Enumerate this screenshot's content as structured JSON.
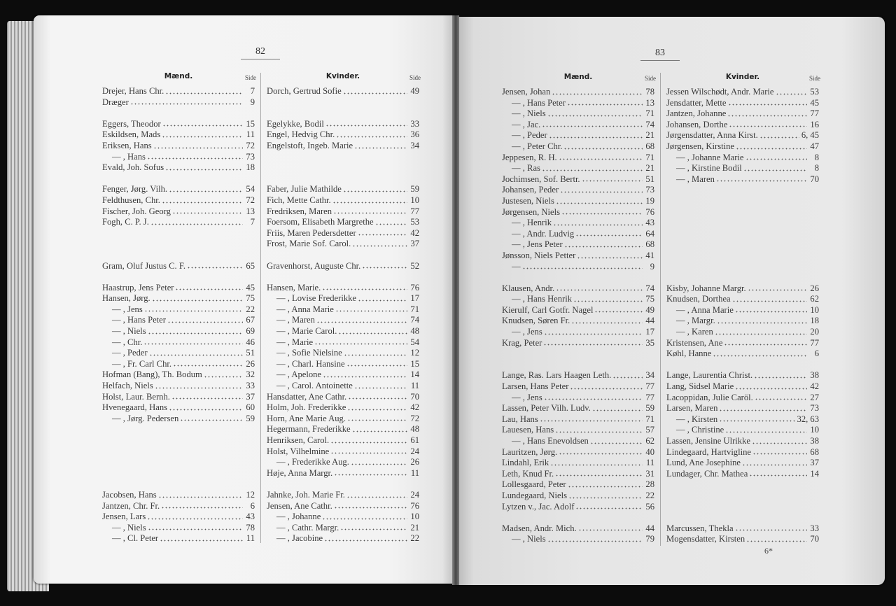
{
  "left_page": {
    "page_number": "82",
    "men": {
      "heading": "Mænd.",
      "side_label": "Side",
      "rows": [
        {
          "name": "Drejer, Hans Chr.",
          "page": "7"
        },
        {
          "name": "Dræger",
          "page": "9"
        },
        {},
        {
          "name": "Eggers, Theodor",
          "page": "15"
        },
        {
          "name": "Eskildsen, Mads",
          "page": "11"
        },
        {
          "name": "Eriksen, Hans",
          "page": "72"
        },
        {
          "name": "— , Hans",
          "page": "73"
        },
        {
          "name": "Evald, Joh. Sofus",
          "page": "18"
        },
        {},
        {
          "name": "Fenger, Jørg. Vilh.",
          "page": "54"
        },
        {
          "name": "Feldthusen, Chr.",
          "page": "72"
        },
        {
          "name": "Fischer, Joh. Georg",
          "page": "13"
        },
        {
          "name": "Fogh, C. P. J.",
          "page": "7"
        },
        {},
        {},
        {},
        {
          "name": "Gram, Oluf Justus C. F.",
          "page": "65"
        },
        {},
        {
          "name": "Haastrup, Jens Peter",
          "page": "45"
        },
        {
          "name": "Hansen, Jørg.",
          "page": "75"
        },
        {
          "name": "— , Jens",
          "page": "22"
        },
        {
          "name": "— , Hans Peter",
          "page": "67"
        },
        {
          "name": "— , Niels",
          "page": "69"
        },
        {
          "name": "— , Chr.",
          "page": "46"
        },
        {
          "name": "— , Peder",
          "page": "51"
        },
        {
          "name": "— , Fr. Carl Chr.",
          "page": "26"
        },
        {
          "name": "Hofman (Bang), Th. Bodum",
          "page": "32"
        },
        {
          "name": "Helfach, Niels",
          "page": "33"
        },
        {
          "name": "Holst, Laur. Bernh.",
          "page": "37"
        },
        {
          "name": "Hvenegaard, Hans",
          "page": "60"
        },
        {
          "name": "— , Jørg. Pedersen",
          "page": "59"
        },
        {},
        {},
        {},
        {},
        {},
        {},
        {
          "name": "Jacobsen, Hans",
          "page": "12"
        },
        {
          "name": "Jantzen, Chr. Fr.",
          "page": "6"
        },
        {
          "name": "Jensen, Lars",
          "page": "43"
        },
        {
          "name": "— , Niels",
          "page": "78"
        },
        {
          "name": "— , Cl. Peter",
          "page": "11"
        }
      ]
    },
    "women": {
      "heading": "Kvinder.",
      "side_label": "Side",
      "rows": [
        {
          "name": "Dorch, Gertrud Sofie",
          "page": "49"
        },
        {},
        {},
        {
          "name": "Egelykke, Bodil",
          "page": "33"
        },
        {
          "name": "Engel, Hedvig Chr.",
          "page": "36"
        },
        {
          "name": "Engelstoft, Ingeb. Marie",
          "page": "34"
        },
        {},
        {},
        {},
        {
          "name": "Faber, Julie Mathilde",
          "page": "59"
        },
        {
          "name": "Fich, Mette Cathr.",
          "page": "10"
        },
        {
          "name": "Fredriksen, Maren",
          "page": "77"
        },
        {
          "name": "Foersom, Elisabeth Margrethe",
          "page": "53"
        },
        {
          "name": "Friis, Maren Pedersdetter",
          "page": "42"
        },
        {
          "name": "Frost, Marie Sof. Carol.",
          "page": "37"
        },
        {},
        {
          "name": "Gravenhorst, Auguste Chr.",
          "page": "52"
        },
        {},
        {
          "name": "Hansen, Marie.",
          "page": "76"
        },
        {
          "name": "— , Lovise Frederikke",
          "page": "17"
        },
        {
          "name": "— , Anna Marie",
          "page": "71"
        },
        {
          "name": "— , Maren",
          "page": "74"
        },
        {
          "name": "— , Marie Carol.",
          "page": "48"
        },
        {
          "name": "— , Marie",
          "page": "54"
        },
        {
          "name": "— , Sofie Nielsine",
          "page": "12"
        },
        {
          "name": "— , Charl. Hansine",
          "page": "15"
        },
        {
          "name": "— , Apelone",
          "page": "14"
        },
        {
          "name": "— , Carol. Antoinette",
          "page": "11"
        },
        {
          "name": "Hansdatter, Ane Cathr.",
          "page": "70"
        },
        {
          "name": "Holm, Joh. Frederikke",
          "page": "42"
        },
        {
          "name": "Horn, Ane Marie Aug.",
          "page": "72"
        },
        {
          "name": "Hegermann, Frederikke",
          "page": "48"
        },
        {
          "name": "Henriksen, Carol.",
          "page": "61"
        },
        {
          "name": "Holst, Vilhelmine",
          "page": "24"
        },
        {
          "name": "— , Frederikke Aug.",
          "page": "26"
        },
        {
          "name": "Høje, Anna Margr.",
          "page": "11"
        },
        {},
        {
          "name": "Jahnke, Joh. Marie Fr.",
          "page": "24"
        },
        {
          "name": "Jensen, Ane Cathr.",
          "page": "76"
        },
        {
          "name": "— , Johanne",
          "page": "10"
        },
        {
          "name": "— , Cathr. Margr.",
          "page": "21"
        },
        {
          "name": "— , Jacobine",
          "page": "22"
        }
      ]
    }
  },
  "right_page": {
    "page_number": "83",
    "signature_mark": "6*",
    "men": {
      "heading": "Mænd.",
      "side_label": "Side",
      "rows": [
        {
          "name": "Jensen, Johan",
          "page": "78"
        },
        {
          "name": "— , Hans Peter",
          "page": "13"
        },
        {
          "name": "— , Niels",
          "page": "71"
        },
        {
          "name": "— , Jac.",
          "page": "74"
        },
        {
          "name": "— , Peder",
          "page": "21"
        },
        {
          "name": "— , Peter Chr.",
          "page": "68"
        },
        {
          "name": "Jeppesen, R. H.",
          "page": "71"
        },
        {
          "name": "— , Ras",
          "page": "21"
        },
        {
          "name": "Jochimsen, Sof. Bertr.",
          "page": "51"
        },
        {
          "name": "Johansen, Peder",
          "page": "73"
        },
        {
          "name": "Justesen, Niels",
          "page": "19"
        },
        {
          "name": "Jørgensen, Niels",
          "page": "76"
        },
        {
          "name": "— , Henrik",
          "page": "43"
        },
        {
          "name": "— , Andr. Ludvig",
          "page": "64"
        },
        {
          "name": "— , Jens Peter",
          "page": "68"
        },
        {
          "name": "Jønsson, Niels Petter",
          "page": "41"
        },
        {
          "name": "—",
          "page": "9"
        },
        {},
        {
          "name": "Klausen, Andr.",
          "page": "74"
        },
        {
          "name": "— , Hans Henrik",
          "page": "75"
        },
        {
          "name": "Kierulf, Carl Gotfr. Nagel",
          "page": "49"
        },
        {
          "name": "Knudsen, Søren Fr.",
          "page": "44"
        },
        {
          "name": "— , Jens",
          "page": "17"
        },
        {
          "name": "Krag, Peter",
          "page": "35"
        },
        {},
        {},
        {
          "name": "Lange, Ras. Lars Haagen Leth.",
          "page": "34"
        },
        {
          "name": "Larsen, Hans Peter",
          "page": "77"
        },
        {
          "name": "— , Jens",
          "page": "77"
        },
        {
          "name": "Lassen, Peter Vilh. Ludv.",
          "page": "59"
        },
        {
          "name": "Lau, Hans",
          "page": "71"
        },
        {
          "name": "Lauesen, Hans",
          "page": "57"
        },
        {
          "name": "— , Hans Enevoldsen",
          "page": "62"
        },
        {
          "name": "Lauritzen, Jørg.",
          "page": "40"
        },
        {
          "name": "Lindahl, Erik",
          "page": "11"
        },
        {
          "name": "Leth, Knud Fr.",
          "page": "31"
        },
        {
          "name": "Lollesgaard, Peter",
          "page": "28"
        },
        {
          "name": "Lundegaard, Niels",
          "page": "22"
        },
        {
          "name": "Lytzen v., Jac. Adolf",
          "page": "56"
        },
        {},
        {
          "name": "Madsen, Andr. Mich.",
          "page": "44"
        },
        {
          "name": "— , Niels",
          "page": "79"
        }
      ]
    },
    "women": {
      "heading": "Kvinder.",
      "side_label": "Side",
      "rows": [
        {
          "name": "Jessen Wilschødt, Andr. Marie",
          "page": "53"
        },
        {
          "name": "Jensdatter, Mette",
          "page": "45"
        },
        {
          "name": "Jantzen, Johanne",
          "page": "77"
        },
        {
          "name": "Johansen, Dorthe",
          "page": "16"
        },
        {
          "name": "Jørgensdatter, Anna Kirst.",
          "page": "6, 45"
        },
        {
          "name": "Jørgensen, Kirstine",
          "page": "47"
        },
        {
          "name": "— , Johanne Marie",
          "page": "8"
        },
        {
          "name": "— , Kirstine Bodil",
          "page": "8"
        },
        {
          "name": "— , Maren",
          "page": "70"
        },
        {},
        {},
        {},
        {},
        {},
        {},
        {},
        {},
        {},
        {
          "name": "Kisby, Johanne Margr.",
          "page": "26"
        },
        {
          "name": "Knudsen, Dorthea",
          "page": "62"
        },
        {
          "name": "— , Anna Marie",
          "page": "10"
        },
        {
          "name": "— , Margr.",
          "page": "18"
        },
        {
          "name": "— , Karen",
          "page": "20"
        },
        {
          "name": "Kristensen, Ane",
          "page": "77"
        },
        {
          "name": "Køhl, Hanne",
          "page": "6"
        },
        {},
        {
          "name": "Lange, Laurentia Christ.",
          "page": "38"
        },
        {
          "name": "Lang, Sidsel Marie",
          "page": "42"
        },
        {
          "name": "Lacoppidan, Julie Caröl.",
          "page": "27"
        },
        {
          "name": "Larsen, Maren",
          "page": "73"
        },
        {
          "name": "— , Kirsten",
          "page": "32, 63"
        },
        {
          "name": "— , Christine",
          "page": "10"
        },
        {
          "name": "Lassen, Jensine Ulrikke",
          "page": "38"
        },
        {
          "name": "Lindegaard, Hartvigline",
          "page": "68"
        },
        {
          "name": "Lund, Ane Josephine",
          "page": "37"
        },
        {
          "name": "Lundager, Chr. Mathea",
          "page": "14"
        },
        {},
        {},
        {},
        {},
        {
          "name": "Marcussen, Thekla",
          "page": "33"
        },
        {
          "name": "Mogensdatter, Kirsten",
          "page": "70"
        }
      ]
    }
  }
}
